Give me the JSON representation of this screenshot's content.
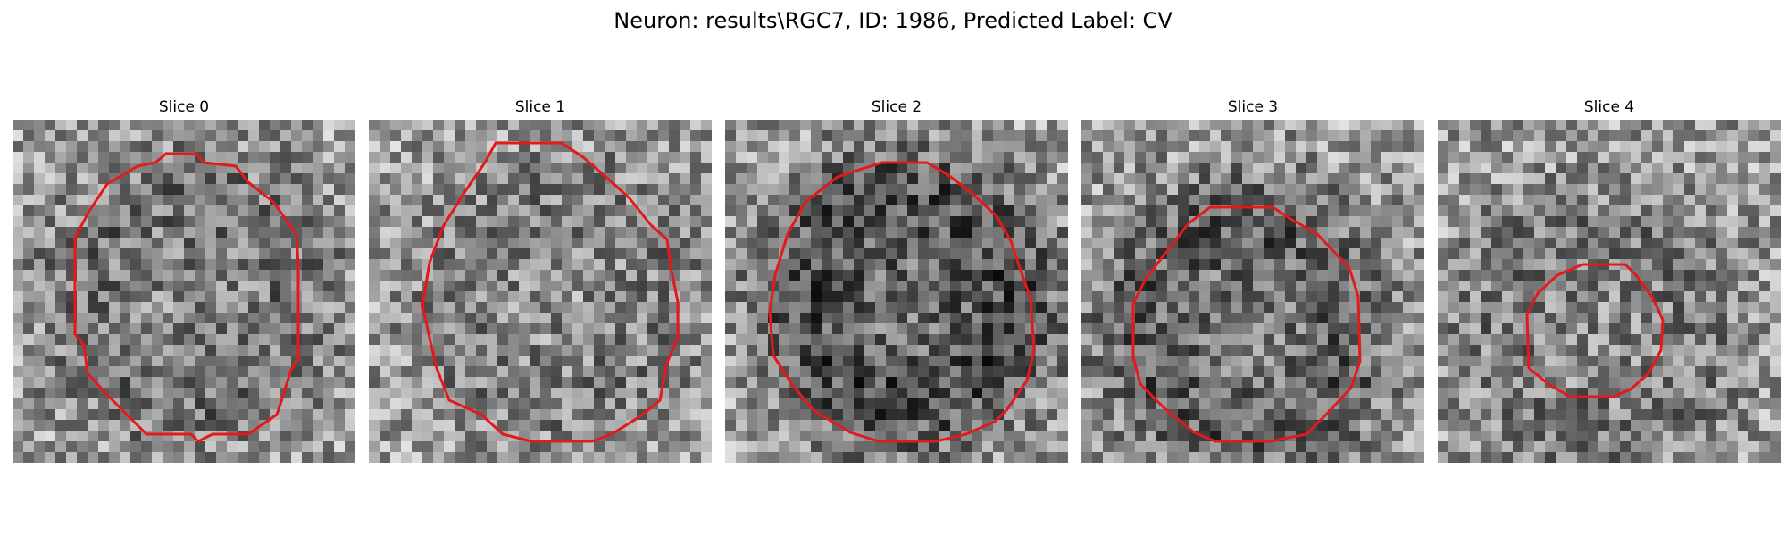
{
  "figure": {
    "suptitle": "Neuron: results\\RGC7, ID: 1986, Predicted Label: CV",
    "contour_color": "#e31a1c",
    "panels": [
      {
        "title": "Slice 0",
        "seed": 11,
        "darkness": 0.15,
        "contour": [
          [
            172,
            38
          ],
          [
            206,
            38
          ],
          [
            214,
            48
          ],
          [
            250,
            52
          ],
          [
            264,
            70
          ],
          [
            292,
            92
          ],
          [
            318,
            128
          ],
          [
            320,
            164
          ],
          [
            320,
            268
          ],
          [
            312,
            280
          ],
          [
            302,
            312
          ],
          [
            296,
            330
          ],
          [
            264,
            352
          ],
          [
            224,
            352
          ],
          [
            208,
            360
          ],
          [
            200,
            352
          ],
          [
            150,
            352
          ],
          [
            130,
            332
          ],
          [
            108,
            310
          ],
          [
            84,
            284
          ],
          [
            80,
            252
          ],
          [
            70,
            240
          ],
          [
            70,
            132
          ],
          [
            86,
            102
          ],
          [
            106,
            72
          ],
          [
            140,
            52
          ],
          [
            160,
            48
          ]
        ]
      },
      {
        "title": "Slice 1",
        "seed": 23,
        "darkness": 0.1,
        "contour": [
          [
            142,
            26
          ],
          [
            216,
            26
          ],
          [
            240,
            42
          ],
          [
            270,
            68
          ],
          [
            292,
            88
          ],
          [
            316,
            118
          ],
          [
            334,
            134
          ],
          [
            338,
            164
          ],
          [
            346,
            204
          ],
          [
            346,
            244
          ],
          [
            334,
            272
          ],
          [
            326,
            314
          ],
          [
            304,
            332
          ],
          [
            272,
            352
          ],
          [
            250,
            360
          ],
          [
            182,
            360
          ],
          [
            150,
            352
          ],
          [
            126,
            330
          ],
          [
            90,
            314
          ],
          [
            76,
            278
          ],
          [
            68,
            244
          ],
          [
            60,
            208
          ],
          [
            68,
            160
          ],
          [
            84,
            118
          ],
          [
            108,
            80
          ],
          [
            130,
            48
          ]
        ]
      },
      {
        "title": "Slice 2",
        "seed": 37,
        "darkness": 0.28,
        "contour": [
          [
            176,
            48
          ],
          [
            226,
            48
          ],
          [
            250,
            62
          ],
          [
            276,
            82
          ],
          [
            304,
            108
          ],
          [
            320,
            136
          ],
          [
            328,
            160
          ],
          [
            342,
            200
          ],
          [
            346,
            258
          ],
          [
            338,
            292
          ],
          [
            316,
            324
          ],
          [
            302,
            338
          ],
          [
            270,
            352
          ],
          [
            236,
            360
          ],
          [
            172,
            360
          ],
          [
            140,
            350
          ],
          [
            100,
            326
          ],
          [
            76,
            298
          ],
          [
            54,
            264
          ],
          [
            50,
            216
          ],
          [
            56,
            174
          ],
          [
            70,
            128
          ],
          [
            90,
            92
          ],
          [
            126,
            64
          ],
          [
            150,
            56
          ]
        ]
      },
      {
        "title": "Slice 3",
        "seed": 51,
        "darkness": 0.22,
        "contour": [
          [
            144,
            98
          ],
          [
            214,
            98
          ],
          [
            236,
            112
          ],
          [
            264,
            128
          ],
          [
            300,
            166
          ],
          [
            310,
            198
          ],
          [
            312,
            270
          ],
          [
            302,
            300
          ],
          [
            278,
            326
          ],
          [
            252,
            352
          ],
          [
            212,
            360
          ],
          [
            150,
            360
          ],
          [
            126,
            350
          ],
          [
            92,
            322
          ],
          [
            66,
            296
          ],
          [
            58,
            266
          ],
          [
            58,
            206
          ],
          [
            72,
            178
          ],
          [
            92,
            152
          ],
          [
            120,
            116
          ]
        ]
      },
      {
        "title": "Slice 4",
        "seed": 67,
        "darkness": 0.12,
        "contour": [
          [
            162,
            162
          ],
          [
            210,
            162
          ],
          [
            222,
            174
          ],
          [
            240,
            198
          ],
          [
            252,
            224
          ],
          [
            250,
            258
          ],
          [
            236,
            284
          ],
          [
            216,
            302
          ],
          [
            196,
            310
          ],
          [
            148,
            310
          ],
          [
            124,
            296
          ],
          [
            102,
            278
          ],
          [
            100,
            218
          ],
          [
            112,
            194
          ],
          [
            134,
            174
          ]
        ]
      }
    ]
  }
}
